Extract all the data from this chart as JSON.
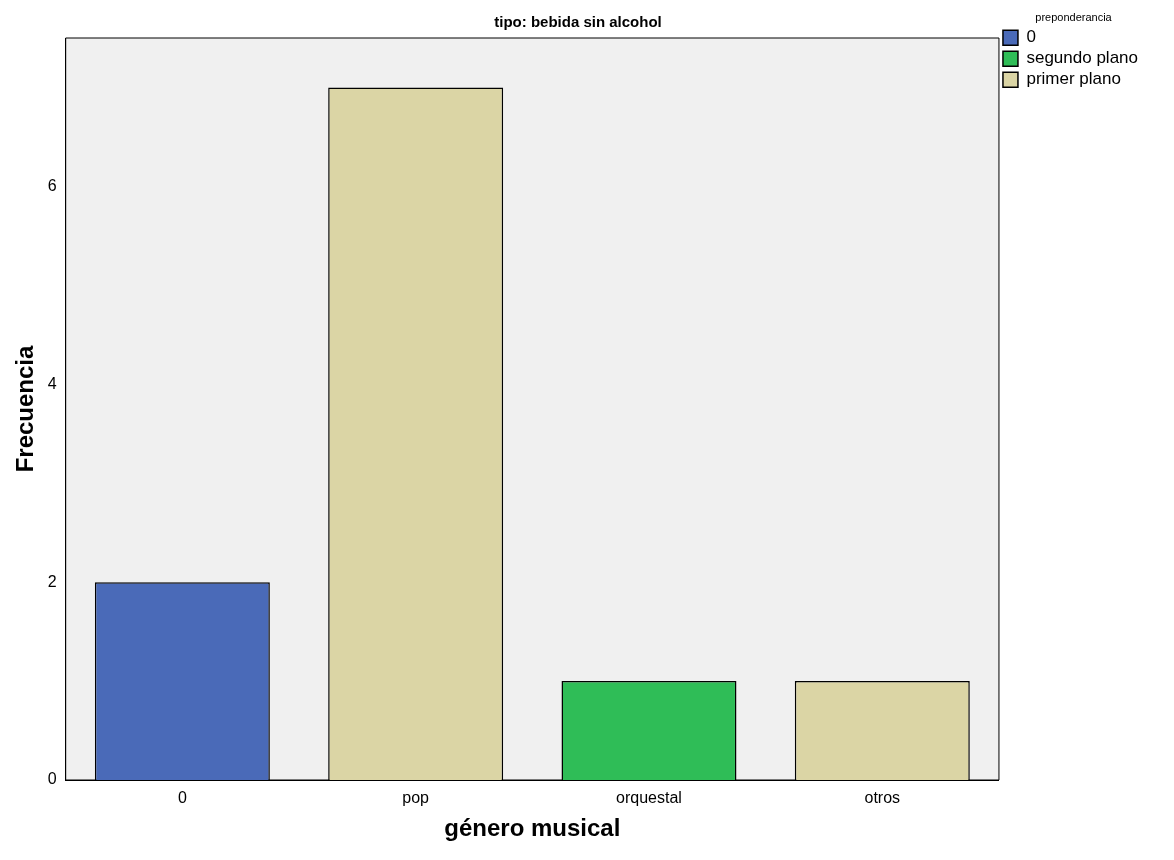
{
  "chart_data": {
    "type": "bar",
    "title": "tipo: bebida sin alcohol",
    "xlabel": "género musical",
    "ylabel": "Frecuencia",
    "legend_title": "preponderancia",
    "categories": [
      "0",
      "pop",
      "orquestal",
      "otros"
    ],
    "series": [
      {
        "name": "0",
        "color": "#4a6ab8",
        "values": [
          2,
          null,
          null,
          null
        ]
      },
      {
        "name": "segundo plano",
        "color": "#2fbd57",
        "values": [
          null,
          null,
          1,
          null
        ]
      },
      {
        "name": "primer plano",
        "color": "#dbd5a5",
        "values": [
          null,
          7,
          null,
          1
        ]
      }
    ],
    "stacked": true,
    "ylim": [
      0,
      7.5
    ],
    "yticks": [
      0,
      2,
      4,
      6
    ],
    "grid": false,
    "legend": "top right"
  }
}
